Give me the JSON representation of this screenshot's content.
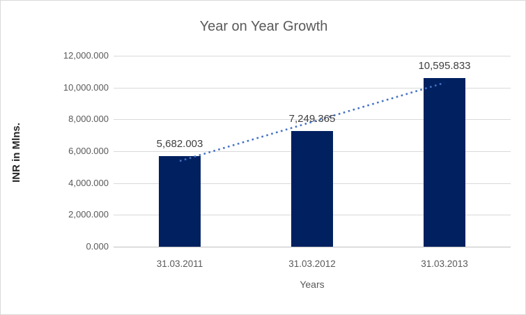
{
  "chart_data": {
    "type": "bar",
    "title": "Year on Year Growth",
    "xlabel": "Years",
    "ylabel": "INR in Mlns.",
    "categories": [
      "31.03.2011",
      "31.03.2012",
      "31.03.2013"
    ],
    "values": [
      5682.003,
      7249.365,
      10595.833
    ],
    "data_labels": [
      "5,682.003",
      "7,249.365",
      "10,595.833"
    ],
    "ylim": [
      0,
      12000
    ],
    "ytick_step": 2000,
    "ytick_labels": [
      "0.000",
      "2,000.000",
      "4,000.000",
      "6,000.000",
      "8,000.000",
      "10,000.000",
      "12,000.000"
    ],
    "grid": true,
    "legend_position": "none",
    "trendline": {
      "type": "linear",
      "style": "dotted"
    },
    "colors": {
      "bar": "#002060",
      "trendline": "#4472C4",
      "gridline": "#D9D9D9",
      "axis_line": "#BFBFBF",
      "axis_text": "#595959",
      "data_label_text": "#404040",
      "title_text": "#595959",
      "border": "#D9D9D9",
      "background": "#FFFFFF"
    }
  }
}
